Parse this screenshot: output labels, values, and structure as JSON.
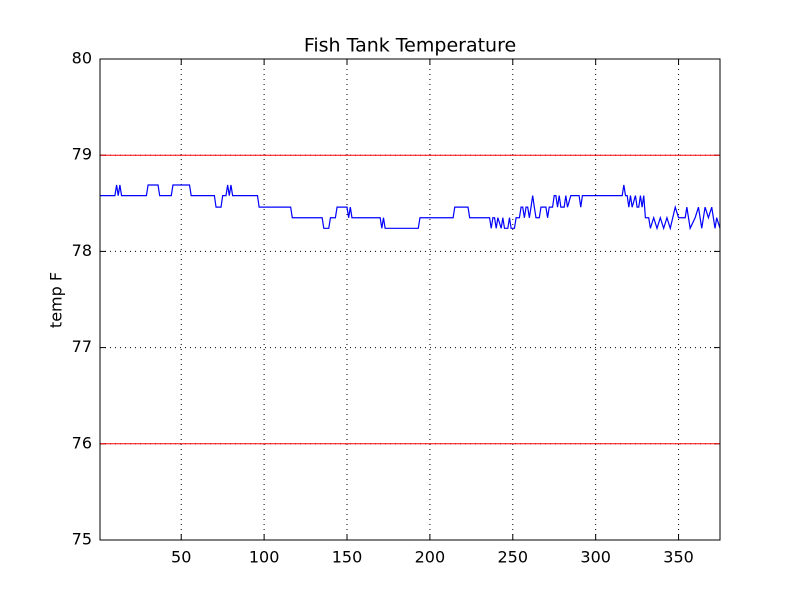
{
  "chart_data": {
    "type": "line",
    "title": "Fish Tank Temperature",
    "y_label": "temp F",
    "x": [
      1,
      10,
      11,
      12,
      13,
      14,
      29,
      30,
      36,
      37,
      44,
      45,
      55,
      56,
      70,
      71,
      74,
      75,
      77,
      78,
      79,
      80,
      81,
      96,
      97,
      116,
      117,
      135,
      136,
      139,
      140,
      143,
      144,
      150,
      151,
      152,
      153,
      170,
      171,
      172,
      173,
      193,
      194,
      214,
      215,
      223,
      224,
      236,
      237,
      238,
      239,
      240,
      241,
      243,
      244,
      245,
      247,
      248,
      249,
      251,
      252,
      254,
      255,
      256,
      257,
      258,
      259,
      260,
      261,
      262,
      263,
      264,
      266,
      267,
      270,
      271,
      272,
      274,
      275,
      276,
      277,
      278,
      279,
      281,
      282,
      283,
      285,
      290,
      291,
      292,
      316,
      317,
      318,
      319,
      320,
      321,
      322,
      324,
      325,
      326,
      327,
      328,
      329,
      330,
      332,
      333,
      335,
      337,
      339,
      341,
      343,
      345,
      348,
      350,
      354,
      355,
      357,
      360,
      362,
      364,
      366,
      368,
      370,
      372,
      373,
      375
    ],
    "values": [
      78.58,
      78.58,
      78.69,
      78.58,
      78.69,
      78.58,
      78.58,
      78.69,
      78.69,
      78.58,
      78.58,
      78.69,
      78.69,
      78.58,
      78.58,
      78.46,
      78.46,
      78.58,
      78.58,
      78.69,
      78.58,
      78.69,
      78.58,
      78.58,
      78.46,
      78.46,
      78.35,
      78.35,
      78.24,
      78.24,
      78.35,
      78.35,
      78.46,
      78.46,
      78.35,
      78.46,
      78.35,
      78.35,
      78.24,
      78.35,
      78.24,
      78.24,
      78.35,
      78.35,
      78.46,
      78.46,
      78.35,
      78.35,
      78.24,
      78.35,
      78.35,
      78.24,
      78.35,
      78.24,
      78.35,
      78.24,
      78.24,
      78.35,
      78.24,
      78.24,
      78.35,
      78.35,
      78.46,
      78.46,
      78.35,
      78.46,
      78.46,
      78.35,
      78.46,
      78.58,
      78.46,
      78.35,
      78.35,
      78.46,
      78.46,
      78.35,
      78.46,
      78.46,
      78.58,
      78.58,
      78.46,
      78.58,
      78.46,
      78.46,
      78.58,
      78.46,
      78.58,
      78.58,
      78.46,
      78.58,
      78.58,
      78.69,
      78.58,
      78.58,
      78.46,
      78.58,
      78.46,
      78.58,
      78.46,
      78.46,
      78.58,
      78.46,
      78.58,
      78.35,
      78.35,
      78.24,
      78.35,
      78.24,
      78.35,
      78.24,
      78.35,
      78.24,
      78.46,
      78.35,
      78.35,
      78.46,
      78.24,
      78.35,
      78.46,
      78.24,
      78.46,
      78.35,
      78.46,
      78.24,
      78.35,
      78.24
    ],
    "color": "#0000ff",
    "hlines": [
      79,
      76
    ],
    "hline_color": "#ff0000",
    "xlim": [
      1,
      375
    ],
    "xticks": [
      50,
      100,
      150,
      200,
      250,
      300,
      350
    ],
    "ylim": [
      75,
      80
    ],
    "yticks": [
      75,
      76,
      77,
      78,
      79,
      80
    ],
    "grid": true
  }
}
